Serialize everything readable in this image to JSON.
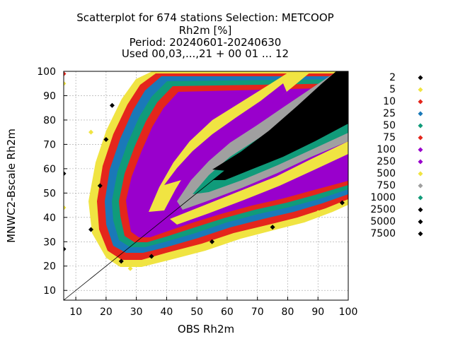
{
  "chart_data": {
    "type": "scatter",
    "title_lines": [
      "Scatterplot for  674 stations Selection: METCOOP",
      "Rh2m [%]",
      "Period: 20240601-20240630",
      "Used 00,03,...,21 + 00 01 ... 12"
    ],
    "xlabel": "OBS Rh2m",
    "ylabel": "MNWC2-Bscale Rh2m",
    "xlim": [
      6,
      100
    ],
    "ylim": [
      6,
      100
    ],
    "xticks": [
      10,
      20,
      30,
      40,
      50,
      60,
      70,
      80,
      90,
      100
    ],
    "yticks": [
      10,
      20,
      30,
      40,
      50,
      60,
      70,
      80,
      90,
      100
    ],
    "grid": true,
    "diagonal_line": true,
    "legend_position": "right",
    "marker": "diamond",
    "density_classes": [
      {
        "label": "2",
        "color": "#000000"
      },
      {
        "label": "5",
        "color": "#f0e442"
      },
      {
        "label": "10",
        "color": "#e4261c"
      },
      {
        "label": "25",
        "color": "#1a79b8"
      },
      {
        "label": "50",
        "color": "#109b7a"
      },
      {
        "label": "75",
        "color": "#e4261c"
      },
      {
        "label": "100",
        "color": "#9900cc"
      },
      {
        "label": "250",
        "color": "#9900cc"
      },
      {
        "label": "500",
        "color": "#f0e442"
      },
      {
        "label": "750",
        "color": "#a0a0a0"
      },
      {
        "label": "1000",
        "color": "#109b7a"
      },
      {
        "label": "2500",
        "color": "#000000"
      },
      {
        "label": "5000",
        "color": "#000000"
      },
      {
        "label": "7500",
        "color": "#000000"
      }
    ],
    "scatter_points_sample": [
      {
        "x": 6,
        "y": 99,
        "class": "10"
      },
      {
        "x": 6,
        "y": 95,
        "class": "5"
      },
      {
        "x": 6,
        "y": 58,
        "class": "2"
      },
      {
        "x": 6,
        "y": 44,
        "class": "5"
      },
      {
        "x": 6,
        "y": 27,
        "class": "2"
      },
      {
        "x": 15,
        "y": 35,
        "class": "2"
      },
      {
        "x": 15,
        "y": 75,
        "class": "5"
      },
      {
        "x": 18,
        "y": 53,
        "class": "2"
      },
      {
        "x": 20,
        "y": 72,
        "class": "2"
      },
      {
        "x": 22,
        "y": 86,
        "class": "2"
      },
      {
        "x": 25,
        "y": 22,
        "class": "2"
      },
      {
        "x": 28,
        "y": 19,
        "class": "5"
      },
      {
        "x": 35,
        "y": 24,
        "class": "2"
      },
      {
        "x": 45,
        "y": 26,
        "class": "5"
      },
      {
        "x": 55,
        "y": 30,
        "class": "2"
      },
      {
        "x": 65,
        "y": 33,
        "class": "5"
      },
      {
        "x": 75,
        "y": 36,
        "class": "2"
      },
      {
        "x": 90,
        "y": 42,
        "class": "5"
      },
      {
        "x": 98,
        "y": 46,
        "class": "2"
      },
      {
        "x": 99,
        "y": 99,
        "class": "2"
      }
    ]
  }
}
